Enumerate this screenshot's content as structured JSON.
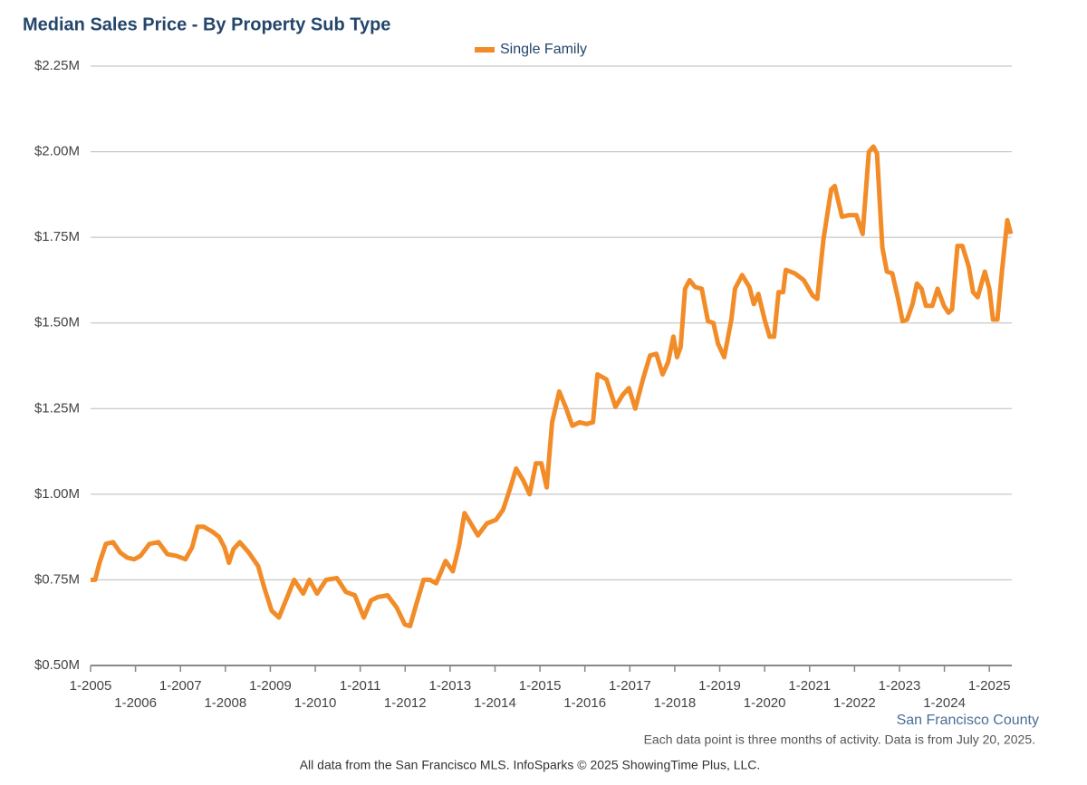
{
  "chart_data": {
    "type": "line",
    "title": "Median Sales Price - By Property Sub Type",
    "region": "San Francisco County",
    "note": "Each data point is three months of activity. Data is from July 20, 2025.",
    "source": "All data from the San Francisco MLS. InfoSparks © 2025 ShowingTime Plus, LLC.",
    "legend": "top",
    "grid": true,
    "xlim": [
      2005,
      2025.5
    ],
    "xticks": [
      {
        "value": 2005,
        "label": "1-2005"
      },
      {
        "value": 2006,
        "label": "1-2006"
      },
      {
        "value": 2007,
        "label": "1-2007"
      },
      {
        "value": 2008,
        "label": "1-2008"
      },
      {
        "value": 2009,
        "label": "1-2009"
      },
      {
        "value": 2010,
        "label": "1-2010"
      },
      {
        "value": 2011,
        "label": "1-2011"
      },
      {
        "value": 2012,
        "label": "1-2012"
      },
      {
        "value": 2013,
        "label": "1-2013"
      },
      {
        "value": 2014,
        "label": "1-2014"
      },
      {
        "value": 2015,
        "label": "1-2015"
      },
      {
        "value": 2016,
        "label": "1-2016"
      },
      {
        "value": 2017,
        "label": "1-2017"
      },
      {
        "value": 2018,
        "label": "1-2018"
      },
      {
        "value": 2019,
        "label": "1-2019"
      },
      {
        "value": 2020,
        "label": "1-2020"
      },
      {
        "value": 2021,
        "label": "1-2021"
      },
      {
        "value": 2022,
        "label": "1-2022"
      },
      {
        "value": 2023,
        "label": "1-2023"
      },
      {
        "value": 2024,
        "label": "1-2024"
      },
      {
        "value": 2025,
        "label": "1-2025"
      }
    ],
    "ylim": [
      0.5,
      2.25
    ],
    "yticks": [
      {
        "value": 0.5,
        "label": "$0.50M"
      },
      {
        "value": 0.75,
        "label": "$0.75M"
      },
      {
        "value": 1.0,
        "label": "$1.00M"
      },
      {
        "value": 1.25,
        "label": "$1.25M"
      },
      {
        "value": 1.5,
        "label": "$1.50M"
      },
      {
        "value": 1.75,
        "label": "$1.75M"
      },
      {
        "value": 2.0,
        "label": "$2.00M"
      },
      {
        "value": 2.25,
        "label": "$2.25M"
      }
    ],
    "x": [
      2005.0,
      2005.1,
      2005.2,
      2005.34,
      2005.5,
      2005.66,
      2005.81,
      2005.97,
      2006.11,
      2006.31,
      2006.51,
      2006.71,
      2006.91,
      2007.11,
      2007.26,
      2007.38,
      2007.52,
      2007.72,
      2007.86,
      2007.98,
      2008.08,
      2008.18,
      2008.32,
      2008.52,
      2008.73,
      2008.87,
      2009.03,
      2009.19,
      2009.33,
      2009.53,
      2009.73,
      2009.87,
      2010.04,
      2010.24,
      2010.48,
      2010.68,
      2010.88,
      2011.08,
      2011.24,
      2011.4,
      2011.61,
      2011.81,
      2011.99,
      2012.11,
      2012.25,
      2012.41,
      2012.55,
      2012.69,
      2012.9,
      2013.06,
      2013.2,
      2013.32,
      2013.46,
      2013.62,
      2013.82,
      2014.02,
      2014.18,
      2014.33,
      2014.47,
      2014.63,
      2014.77,
      2014.91,
      2015.03,
      2015.15,
      2015.27,
      2015.43,
      2015.57,
      2015.72,
      2015.88,
      2016.04,
      2016.18,
      2016.28,
      2016.48,
      2016.68,
      2016.84,
      2016.98,
      2017.12,
      2017.29,
      2017.45,
      2017.59,
      2017.73,
      2017.85,
      2017.97,
      2018.05,
      2018.13,
      2018.23,
      2018.33,
      2018.45,
      2018.6,
      2018.74,
      2018.86,
      2018.96,
      2019.1,
      2019.26,
      2019.34,
      2019.5,
      2019.66,
      2019.76,
      2019.86,
      2020.0,
      2020.11,
      2020.21,
      2020.31,
      2020.41,
      2020.47,
      2020.67,
      2020.87,
      2021.07,
      2021.17,
      2021.31,
      2021.48,
      2021.56,
      2021.72,
      2021.88,
      2022.04,
      2022.18,
      2022.32,
      2022.42,
      2022.5,
      2022.62,
      2022.72,
      2022.84,
      2022.97,
      2023.07,
      2023.17,
      2023.29,
      2023.39,
      2023.49,
      2023.59,
      2023.73,
      2023.85,
      2023.99,
      2024.09,
      2024.17,
      2024.29,
      2024.4,
      2024.54,
      2024.64,
      2024.74,
      2024.9,
      2025.0,
      2025.08,
      2025.18,
      2025.28,
      2025.4,
      2025.48
    ],
    "series": [
      {
        "name": "Single Family",
        "color": "#f28c28",
        "values": [
          0.75,
          0.75,
          0.8,
          0.855,
          0.86,
          0.83,
          0.815,
          0.81,
          0.82,
          0.855,
          0.86,
          0.825,
          0.82,
          0.81,
          0.845,
          0.905,
          0.905,
          0.89,
          0.875,
          0.845,
          0.8,
          0.84,
          0.86,
          0.83,
          0.79,
          0.725,
          0.66,
          0.64,
          0.685,
          0.75,
          0.71,
          0.75,
          0.71,
          0.75,
          0.755,
          0.715,
          0.705,
          0.64,
          0.69,
          0.7,
          0.705,
          0.67,
          0.62,
          0.615,
          0.68,
          0.75,
          0.75,
          0.74,
          0.805,
          0.775,
          0.85,
          0.945,
          0.915,
          0.88,
          0.915,
          0.925,
          0.955,
          1.015,
          1.075,
          1.04,
          1.0,
          1.09,
          1.09,
          1.02,
          1.21,
          1.3,
          1.255,
          1.2,
          1.21,
          1.205,
          1.21,
          1.35,
          1.335,
          1.255,
          1.29,
          1.31,
          1.25,
          1.335,
          1.405,
          1.41,
          1.35,
          1.385,
          1.46,
          1.4,
          1.43,
          1.6,
          1.625,
          1.605,
          1.6,
          1.505,
          1.5,
          1.44,
          1.4,
          1.51,
          1.6,
          1.64,
          1.605,
          1.555,
          1.585,
          1.51,
          1.46,
          1.46,
          1.59,
          1.59,
          1.655,
          1.645,
          1.625,
          1.58,
          1.57,
          1.745,
          1.89,
          1.9,
          1.81,
          1.815,
          1.815,
          1.76,
          2.0,
          2.015,
          1.995,
          1.72,
          1.65,
          1.645,
          1.57,
          1.505,
          1.51,
          1.555,
          1.615,
          1.6,
          1.55,
          1.55,
          1.6,
          1.55,
          1.53,
          1.54,
          1.725,
          1.725,
          1.665,
          1.59,
          1.575,
          1.65,
          1.6,
          1.51,
          1.51,
          1.65,
          1.8,
          1.76
        ]
      }
    ]
  }
}
